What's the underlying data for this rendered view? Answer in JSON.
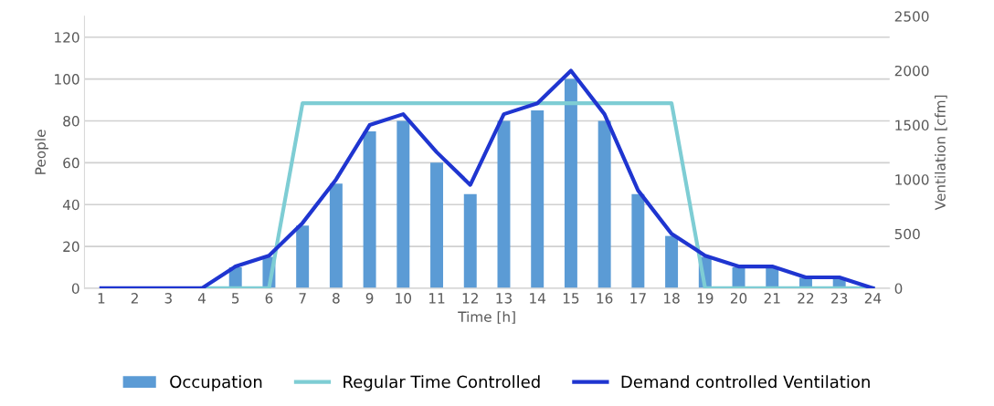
{
  "chart_data": {
    "type": "bar",
    "xlabel": "Time [h]",
    "ylabel": "People",
    "y2label": "Ventilation [cfm]",
    "categories": [
      "1",
      "2",
      "3",
      "4",
      "5",
      "6",
      "7",
      "8",
      "9",
      "10",
      "11",
      "12",
      "13",
      "14",
      "15",
      "16",
      "17",
      "18",
      "19",
      "20",
      "21",
      "22",
      "23",
      "24"
    ],
    "series": [
      {
        "name": "Occupation",
        "color": "#5b9bd5",
        "values": [
          0,
          0,
          0,
          0,
          10,
          15,
          30,
          50,
          75,
          80,
          60,
          45,
          80,
          85,
          100,
          80,
          45,
          25,
          15,
          10,
          10,
          5,
          5,
          0
        ]
      },
      {
        "name": "Regular Time Controlled",
        "type": "line",
        "axis": "y2",
        "color": "#7ecdd4",
        "values": [
          null,
          null,
          null,
          0,
          0,
          0,
          1700,
          1700,
          1700,
          1700,
          1700,
          1700,
          1700,
          1700,
          1700,
          1700,
          1700,
          1700,
          0,
          0,
          0,
          0,
          0,
          0
        ]
      },
      {
        "name": "Demand controlled Ventilation",
        "type": "line",
        "axis": "y2",
        "color": "#1f35d0",
        "values": [
          0,
          0,
          0,
          0,
          200,
          300,
          600,
          1000,
          1500,
          1600,
          1250,
          950,
          1600,
          1700,
          2000,
          1600,
          900,
          500,
          300,
          200,
          200,
          100,
          100,
          0
        ]
      }
    ],
    "ylim": [
      0,
      130
    ],
    "yticks": [
      0,
      20,
      40,
      60,
      80,
      100,
      120
    ],
    "y2lim": [
      0,
      2500
    ],
    "y2ticks": [
      0,
      500,
      1000,
      1500,
      2000,
      2500
    ],
    "grid": "y",
    "legend": "bottom",
    "marker": "none",
    "line_style": "solid"
  }
}
